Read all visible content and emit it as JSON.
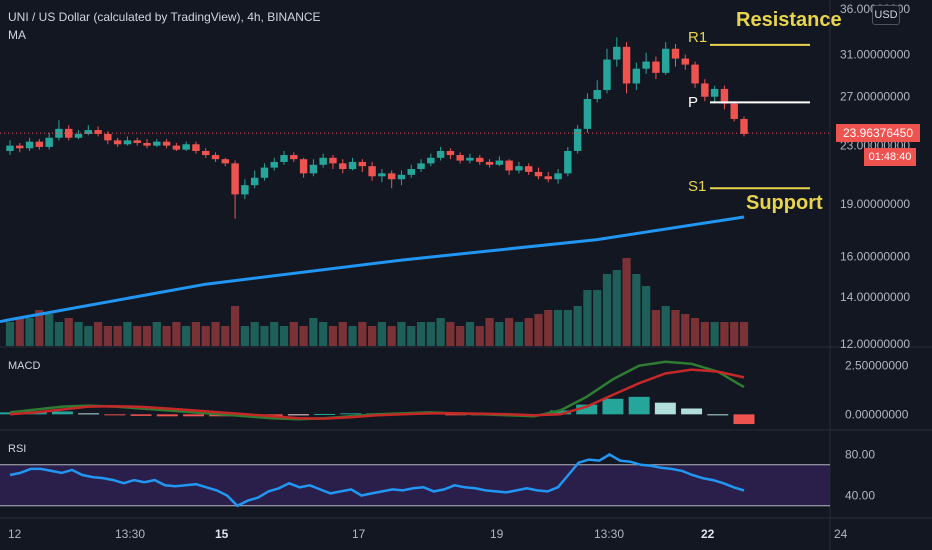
{
  "header": {
    "title": "UNI / US Dollar (calculated by TradingView), 4h, BINANCE",
    "indicator": "MA",
    "currency_button": "USD"
  },
  "price_tag": "23.96376450",
  "countdown_tag": "01:48:40",
  "levels": {
    "R1": "R1",
    "P": "P",
    "S1": "S1",
    "resistance_text": "Resistance",
    "support_text": "Support"
  },
  "macd_label": "MACD",
  "rsi_label": "RSI",
  "colors": {
    "background": "#131722",
    "up": "#26a69a",
    "down": "#ef5350",
    "ma_line": "#2196f3",
    "macd_line": "#2e7d32",
    "signal_line": "#c62828",
    "rsi_line": "#2196f3",
    "rsi_band": "#2a1f4a",
    "level_yellow": "#e8d44d"
  },
  "chart_data": [
    {
      "type": "candlestick",
      "title": "UNI / US Dollar (calculated by TradingView), 4h, BINANCE",
      "yscale": "log",
      "ylim": [
        12,
        36
      ],
      "y_ticks": [
        "36.00000000",
        "31.00000000",
        "27.00000000",
        "23.00000000",
        "19.00000000",
        "16.00000000",
        "14.00000000",
        "12.00000000"
      ],
      "x_ticks": [
        "12",
        "13:30",
        "15",
        "17",
        "19",
        "13:30",
        "22",
        "24"
      ],
      "last_price": 23.96,
      "levels": [
        {
          "name": "R1",
          "value": 32.0
        },
        {
          "name": "P",
          "value": 26.5
        },
        {
          "name": "S1",
          "value": 20.0
        }
      ],
      "ma_series": [
        {
          "x": 0,
          "y": 13.0
        },
        {
          "x": 20,
          "y": 14.6
        },
        {
          "x": 40,
          "y": 15.8
        },
        {
          "x": 60,
          "y": 16.9
        },
        {
          "x": 75,
          "y": 18.2
        }
      ],
      "candles": [
        [
          22.6,
          23.0,
          22.3,
          23.4
        ],
        [
          23.0,
          22.8,
          22.5,
          23.2
        ],
        [
          22.8,
          23.3,
          22.6,
          23.6
        ],
        [
          23.3,
          22.9,
          22.7,
          23.5
        ],
        [
          22.9,
          23.6,
          22.7,
          24.0
        ],
        [
          23.6,
          24.3,
          23.4,
          25.0
        ],
        [
          24.3,
          23.6,
          23.4,
          24.6
        ],
        [
          23.6,
          23.9,
          23.5,
          24.2
        ],
        [
          23.9,
          24.2,
          23.8,
          24.6
        ],
        [
          24.2,
          23.9,
          23.7,
          24.5
        ],
        [
          23.9,
          23.4,
          23.1,
          24.1
        ],
        [
          23.4,
          23.1,
          22.9,
          23.6
        ],
        [
          23.1,
          23.4,
          23.0,
          23.7
        ],
        [
          23.4,
          23.2,
          23.0,
          23.6
        ],
        [
          23.2,
          23.0,
          22.8,
          23.5
        ],
        [
          23.0,
          23.3,
          22.9,
          23.5
        ],
        [
          23.3,
          23.0,
          22.8,
          23.5
        ],
        [
          23.0,
          22.7,
          22.6,
          23.2
        ],
        [
          22.7,
          23.1,
          22.6,
          23.3
        ],
        [
          23.1,
          22.6,
          22.4,
          23.3
        ],
        [
          22.6,
          22.3,
          22.1,
          22.8
        ],
        [
          22.3,
          22.0,
          21.8,
          22.5
        ],
        [
          22.0,
          21.7,
          21.5,
          22.1
        ],
        [
          21.7,
          19.6,
          18.1,
          21.9
        ],
        [
          19.6,
          20.2,
          19.3,
          20.6
        ],
        [
          20.2,
          20.7,
          20.0,
          21.2
        ],
        [
          20.7,
          21.4,
          20.5,
          21.7
        ],
        [
          21.4,
          21.8,
          21.2,
          22.1
        ],
        [
          21.8,
          22.3,
          21.6,
          22.6
        ],
        [
          22.3,
          22.0,
          21.8,
          22.5
        ],
        [
          22.0,
          21.0,
          20.7,
          22.1
        ],
        [
          21.0,
          21.6,
          20.8,
          22.0
        ],
        [
          21.6,
          22.1,
          21.4,
          22.4
        ],
        [
          22.1,
          21.7,
          21.3,
          22.3
        ],
        [
          21.7,
          21.3,
          21.0,
          22.0
        ],
        [
          21.3,
          21.8,
          21.2,
          22.1
        ],
        [
          21.8,
          21.5,
          21.1,
          22.0
        ],
        [
          21.5,
          20.8,
          20.5,
          21.8
        ],
        [
          20.8,
          21.0,
          20.4,
          21.3
        ],
        [
          21.0,
          20.6,
          20.0,
          21.2
        ],
        [
          20.6,
          20.9,
          20.2,
          21.2
        ],
        [
          20.9,
          21.3,
          20.7,
          21.6
        ],
        [
          21.3,
          21.7,
          21.1,
          22.0
        ],
        [
          21.7,
          22.1,
          21.5,
          22.4
        ],
        [
          22.1,
          22.6,
          21.9,
          22.9
        ],
        [
          22.6,
          22.3,
          22.0,
          22.8
        ],
        [
          22.3,
          21.9,
          21.7,
          22.5
        ],
        [
          21.9,
          22.1,
          21.7,
          22.4
        ],
        [
          22.1,
          21.8,
          21.6,
          22.3
        ],
        [
          21.8,
          21.6,
          21.4,
          22.0
        ],
        [
          21.6,
          21.9,
          21.5,
          22.2
        ],
        [
          21.9,
          21.2,
          20.9,
          22.0
        ],
        [
          21.2,
          21.5,
          21.0,
          21.8
        ],
        [
          21.5,
          21.1,
          20.9,
          21.7
        ],
        [
          21.1,
          20.8,
          20.6,
          21.4
        ],
        [
          20.8,
          20.6,
          20.4,
          21.1
        ],
        [
          20.6,
          21.0,
          20.3,
          21.3
        ],
        [
          21.0,
          22.6,
          20.8,
          22.9
        ],
        [
          22.6,
          24.3,
          22.4,
          24.6
        ],
        [
          24.3,
          26.8,
          24.0,
          27.3
        ],
        [
          26.8,
          27.6,
          26.5,
          28.5
        ],
        [
          27.6,
          30.5,
          27.3,
          31.6
        ],
        [
          30.5,
          31.8,
          29.8,
          32.8
        ],
        [
          31.8,
          28.2,
          27.3,
          32.3
        ],
        [
          28.2,
          29.6,
          27.6,
          30.2
        ],
        [
          29.6,
          30.3,
          29.1,
          31.2
        ],
        [
          30.3,
          29.2,
          28.6,
          30.8
        ],
        [
          29.2,
          31.6,
          29.0,
          32.3
        ],
        [
          31.6,
          30.6,
          29.8,
          32.1
        ],
        [
          30.6,
          30.0,
          29.5,
          31.0
        ],
        [
          30.0,
          28.2,
          27.8,
          30.3
        ],
        [
          28.2,
          27.0,
          26.6,
          28.6
        ],
        [
          27.0,
          27.7,
          26.5,
          28.0
        ],
        [
          27.7,
          26.4,
          25.9,
          28.0
        ],
        [
          26.4,
          25.1,
          24.9,
          26.6
        ],
        [
          25.1,
          23.9,
          23.7,
          25.3
        ]
      ],
      "volume": [
        6,
        7,
        7,
        9,
        8,
        6,
        7,
        6,
        5,
        6,
        5,
        5,
        6,
        5,
        5,
        6,
        5,
        6,
        5,
        6,
        5,
        6,
        5,
        10,
        5,
        6,
        5,
        6,
        5,
        6,
        5,
        7,
        6,
        5,
        6,
        5,
        6,
        5,
        6,
        5,
        6,
        5,
        6,
        6,
        7,
        6,
        5,
        6,
        5,
        7,
        6,
        7,
        6,
        7,
        8,
        9,
        9,
        9,
        10,
        14,
        14,
        18,
        19,
        22,
        18,
        15,
        9,
        10,
        9,
        8,
        7,
        6,
        6,
        6,
        6,
        6
      ]
    },
    {
      "type": "line",
      "title": "MACD",
      "ylim": [
        -0.6,
        3.0
      ],
      "y_ticks": [
        "2.50000000",
        "0.00000000"
      ],
      "series": [
        {
          "name": "MACD",
          "values": [
            0.1,
            0.25,
            0.4,
            0.45,
            0.4,
            0.3,
            0.2,
            0.1,
            0.0,
            -0.1,
            -0.2,
            -0.25,
            -0.2,
            -0.1,
            0.0,
            0.05,
            0.1,
            0.05,
            0.0,
            -0.05,
            -0.1,
            0.2,
            0.9,
            1.8,
            2.5,
            2.7,
            2.6,
            2.2,
            1.4
          ]
        },
        {
          "name": "Signal",
          "values": [
            0.0,
            0.1,
            0.25,
            0.4,
            0.42,
            0.38,
            0.3,
            0.2,
            0.1,
            0.0,
            -0.1,
            -0.2,
            -0.22,
            -0.15,
            -0.05,
            0.0,
            0.05,
            0.06,
            0.03,
            0.0,
            -0.05,
            0.0,
            0.4,
            1.0,
            1.6,
            2.1,
            2.3,
            2.2,
            1.9
          ]
        }
      ],
      "histogram": [
        0.1,
        0.15,
        0.15,
        0.05,
        -0.02,
        -0.08,
        -0.1,
        -0.1,
        -0.1,
        -0.1,
        -0.1,
        -0.05,
        0.02,
        0.05,
        0.05,
        0.05,
        0.05,
        -0.01,
        -0.03,
        -0.05,
        -0.05,
        0.2,
        0.5,
        0.8,
        0.9,
        0.6,
        0.3,
        0.0,
        -0.5
      ]
    },
    {
      "type": "line",
      "title": "RSI",
      "ylim": [
        20,
        100
      ],
      "band": [
        30,
        70
      ],
      "y_ticks": [
        "80.00",
        "40.00"
      ],
      "series": [
        {
          "name": "RSI",
          "values": [
            60,
            62,
            66,
            66,
            64,
            62,
            65,
            60,
            58,
            57,
            55,
            52,
            55,
            53,
            55,
            50,
            49,
            50,
            51,
            48,
            45,
            40,
            30,
            35,
            38,
            44,
            47,
            52,
            48,
            50,
            46,
            42,
            44,
            46,
            40,
            42,
            44,
            46,
            45,
            47,
            48,
            44,
            46,
            50,
            48,
            47,
            45,
            44,
            43,
            45,
            47,
            45,
            44,
            48,
            60,
            72,
            75,
            74,
            80,
            74,
            73,
            70,
            69,
            67,
            66,
            64,
            60,
            57,
            55,
            52,
            48,
            45
          ]
        }
      ]
    }
  ]
}
